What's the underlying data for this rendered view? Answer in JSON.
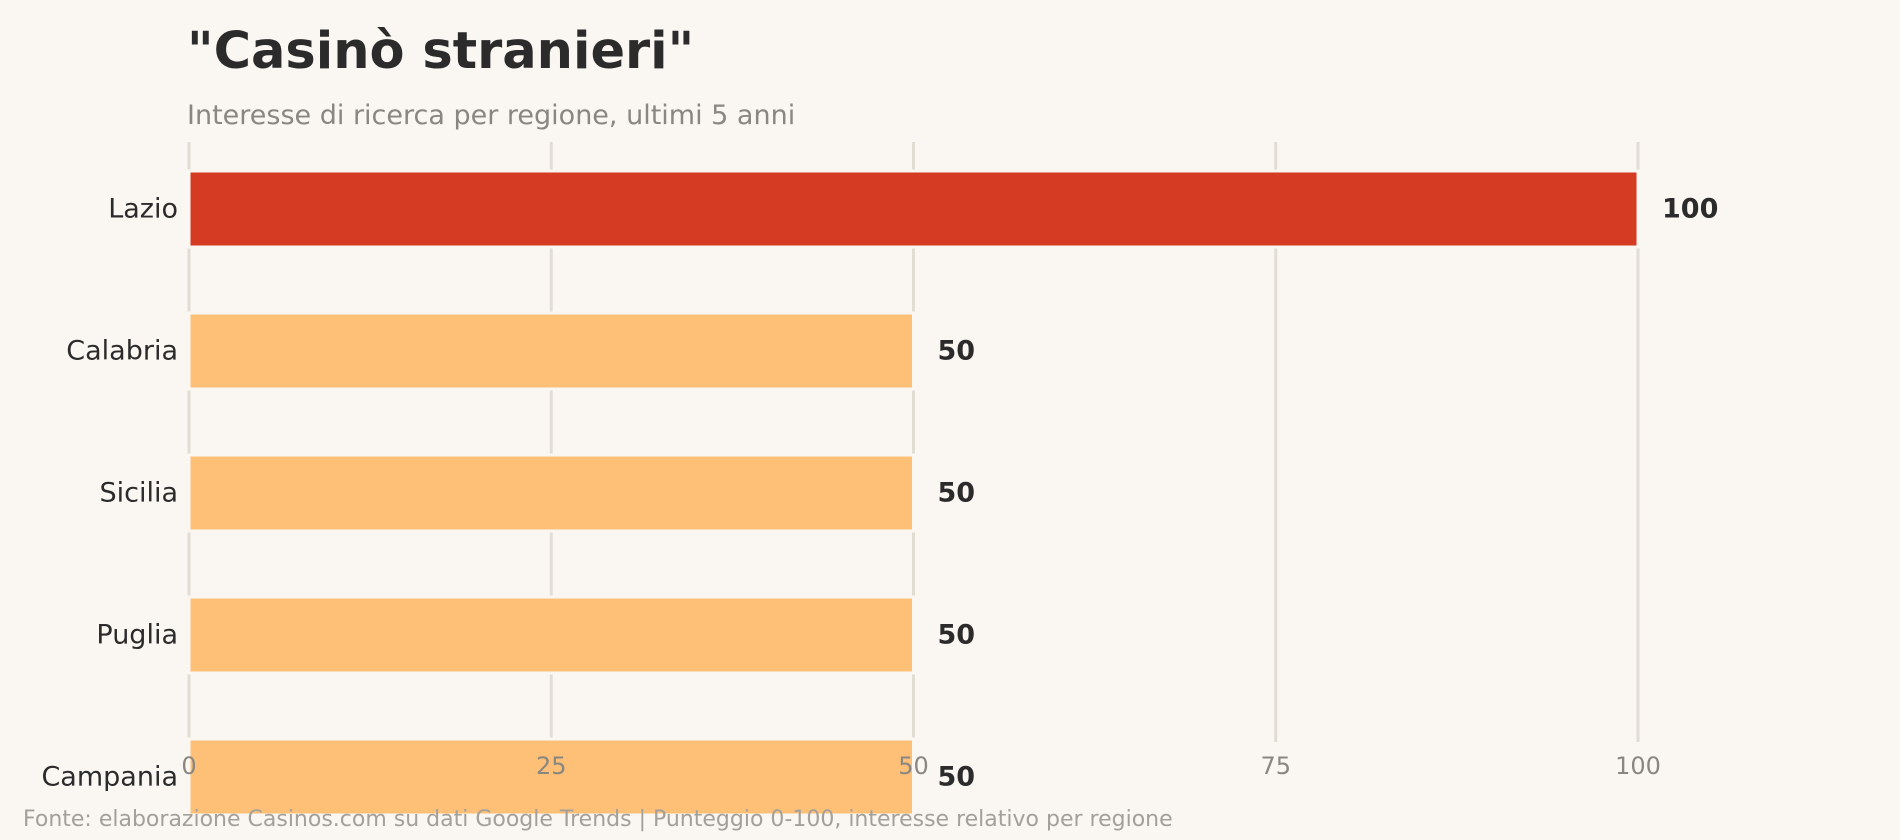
{
  "title": "\"Casinò stranieri\"",
  "subtitle": "Interesse di ricerca per regione, ultimi 5 anni",
  "footer": "Fonte: elaborazione Casinos.com su dati Google Trends  |  Punteggio 0-100, interesse relativo per regione",
  "colors": {
    "highlight": "#d53a22",
    "bar": "#fec076",
    "grid": "#e2ddd3",
    "background": "#faf7f3",
    "label": "#2b2b2b",
    "tick": "#8a8782"
  },
  "chart_data": {
    "type": "bar",
    "orientation": "horizontal",
    "categories": [
      "Lazio",
      "Calabria",
      "Sicilia",
      "Puglia",
      "Campania"
    ],
    "values": [
      100,
      50,
      50,
      50,
      50
    ],
    "value_labels": [
      "100",
      "50",
      "50",
      "50",
      "50"
    ],
    "highlight_index": 0,
    "xlim": [
      0,
      120
    ],
    "xticks": [
      0,
      25,
      50,
      75,
      100
    ],
    "xtick_labels": [
      "0",
      "25",
      "50",
      "75",
      "100"
    ],
    "grid": "vertical",
    "legend": "none"
  }
}
